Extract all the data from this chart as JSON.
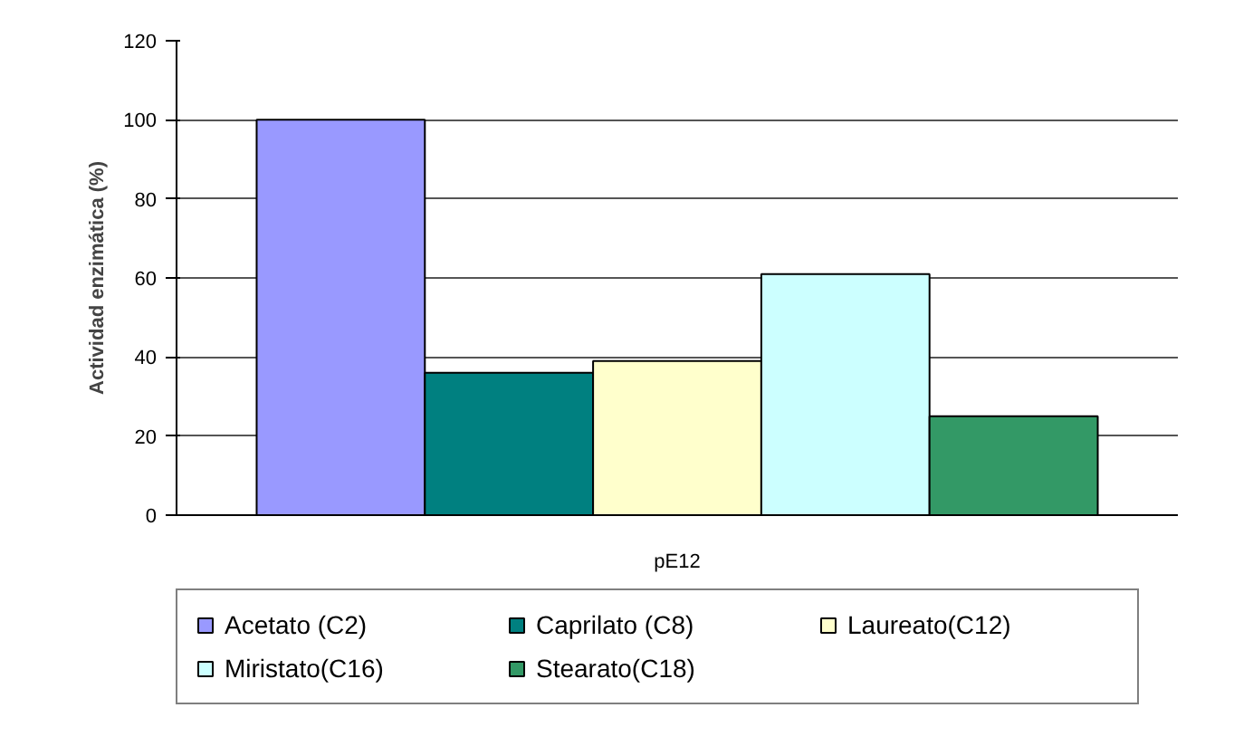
{
  "chart_data": {
    "type": "bar",
    "ylabel": "Actividad enzimática (%)",
    "categories": [
      "pE12"
    ],
    "series": [
      {
        "name": "Acetato (C2)",
        "color": "#9999ff",
        "values": [
          100
        ]
      },
      {
        "name": "Caprilato (C8)",
        "color": "#008080",
        "values": [
          36
        ]
      },
      {
        "name": "Laureato(C12)",
        "color": "#ffffcc",
        "values": [
          39
        ]
      },
      {
        "name": "Miristato(C16)",
        "color": "#ccffff",
        "values": [
          61
        ]
      },
      {
        "name": "Stearato(C18)",
        "color": "#339966",
        "values": [
          25
        ]
      }
    ],
    "ylim": [
      0,
      120
    ],
    "yticks": [
      0,
      20,
      40,
      60,
      80,
      100,
      120
    ],
    "grid": "y",
    "legend": "bottom"
  }
}
